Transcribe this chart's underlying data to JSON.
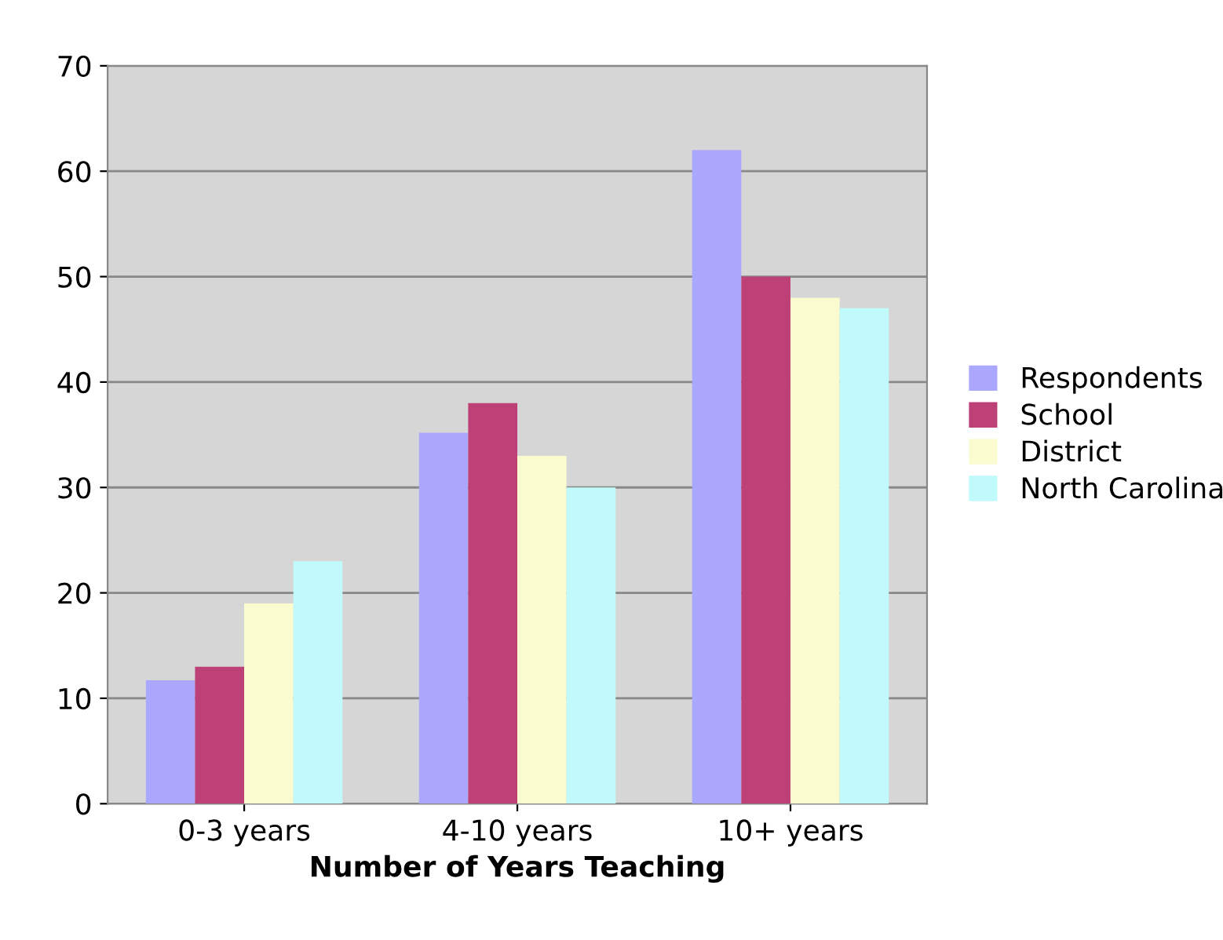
{
  "chart_data": {
    "type": "bar",
    "xlabel": "Number of Years Teaching",
    "categories": [
      "0-3 years",
      "4-10 years",
      "10+ years"
    ],
    "series": [
      {
        "name": "Respondents",
        "color": "#aaa7fc",
        "values": [
          11.7,
          35.2,
          62
        ]
      },
      {
        "name": "School",
        "color": "#bd4077",
        "values": [
          13,
          38,
          50
        ]
      },
      {
        "name": "District",
        "color": "#fafcd0",
        "values": [
          19,
          33,
          48
        ]
      },
      {
        "name": "North Carolina",
        "color": "#c0fafb",
        "values": [
          23,
          30,
          47
        ]
      }
    ],
    "ylim": [
      0,
      70
    ],
    "yticks": [
      0,
      10,
      20,
      30,
      40,
      50,
      60,
      70
    ],
    "grid": "y",
    "legend": "right"
  }
}
